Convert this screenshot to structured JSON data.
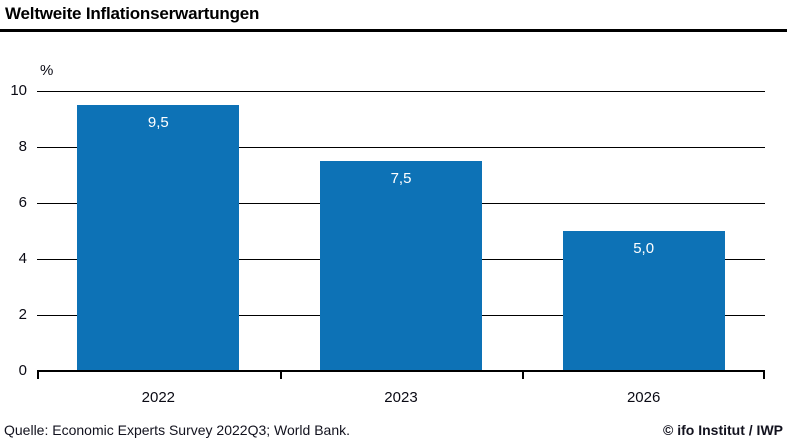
{
  "title": "Weltweite Inflationserwartungen",
  "footer": {
    "source": "Quelle: Economic Experts Survey 2022Q3; World Bank.",
    "copyright": "© ifo Institut / IWP"
  },
  "colors": {
    "bar": "#0d72b6",
    "axis": "#000000",
    "bar_label": "#ffffff"
  },
  "chart_data": {
    "type": "bar",
    "title": "Weltweite Inflationserwartungen",
    "categories": [
      "2022",
      "2023",
      "2026"
    ],
    "values": [
      9.5,
      7.5,
      5.0
    ],
    "value_labels": [
      "9,5",
      "7,5",
      "5,0"
    ],
    "xlabel": "",
    "ylabel": "%",
    "ylim": [
      0,
      10
    ],
    "yticks": [
      0,
      2,
      4,
      6,
      8,
      10
    ],
    "grid": "horizontal",
    "legend": "none",
    "bar_color": "#0d72b6"
  }
}
